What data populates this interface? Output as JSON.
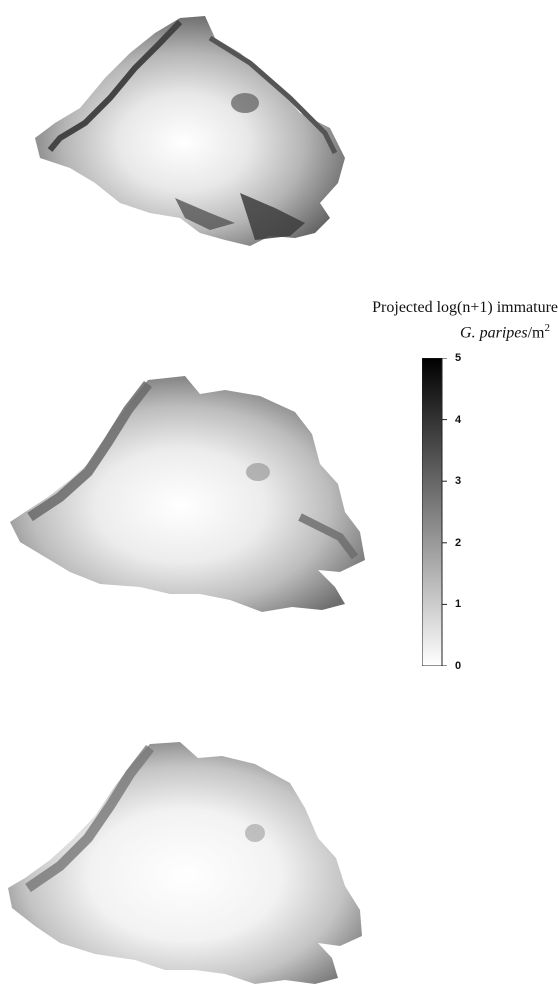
{
  "legend": {
    "title_line1": "Projected log(n+1) immature",
    "species": "G. paripes",
    "unit_prefix": "/m",
    "unit_exponent": "2",
    "ticks": [
      "0",
      "1",
      "2",
      "3",
      "4",
      "5"
    ],
    "range": [
      0,
      5
    ],
    "colormap": "grayscale (white = 0, black = 5)"
  },
  "panels": [
    {
      "id": "top",
      "description_level": "highest overall density, dark rim"
    },
    {
      "id": "middle",
      "description_level": "intermediate density"
    },
    {
      "id": "bottom",
      "description_level": "lowest density, pale center"
    }
  ]
}
